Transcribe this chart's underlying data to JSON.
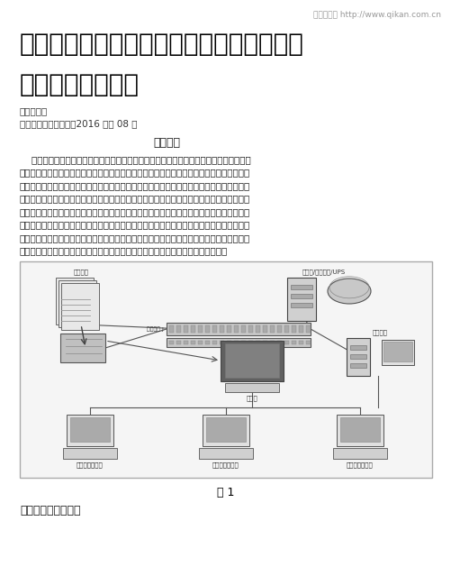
{
  "page_width": 5.02,
  "page_height": 6.49,
  "dpi": 100,
  "bg_color": "#ffffff",
  "header_text": "龙源期刊网 http://www.qikan.com.cn",
  "header_fontsize": 6.5,
  "header_color": "#999999",
  "title_line1": "浅谈民用航空航空情报动态信息管理系统常",
  "title_line2": "见故障及排除方法",
  "title_fontsize": 20,
  "title_color": "#000000",
  "author_text": "作者：王飞",
  "source_text": "来源：《中国新通信》2016 年第 08 期",
  "meta_fontsize": 7.5,
  "meta_color": "#333333",
  "section1_title": "一、引言",
  "section1_fontsize": 9,
  "body_fontsize": 7.5,
  "body_color": "#1a1a1a",
  "body_lines": [
    "    呼伦贝尔空管站飞行服务业务隶属于空管站管制运行部管制室，主要负责向协议单位通报",
    "本场飞行动态；负责协议航空公司的航务代理服务工作；收集、初步审核、上报本机场及与本",
    "机场有关业务单位提供的航空情报原始资料；接收、处理航行通告并将有关海拉尔机场的航行",
    "通告原始资料传递给内蒙古空管分局；组织实施本机场飞行前和飞行后航空情报服务；负责本",
    "单位及本机场空中交通管理部门所需的航空资料、航空地图的管理和供应，保证本单位目标任",
    "务的全面完成。航空情报动态信息管理系统主要用于接收、处理和发布国内外航行通告、雪情",
    "通告及其它电报，并向航空公司、空中交通管制部门和其它用户提供飞行前资料公告和航行通",
    "告的查询服务。航空情报动态信息管理系统是航空情报自动化系统中的一个子系统。"
  ],
  "fig_caption": "图 1",
  "fig_caption_fontsize": 9,
  "section2_title": "二、常见故障及维修",
  "section2_fontsize": 9
}
